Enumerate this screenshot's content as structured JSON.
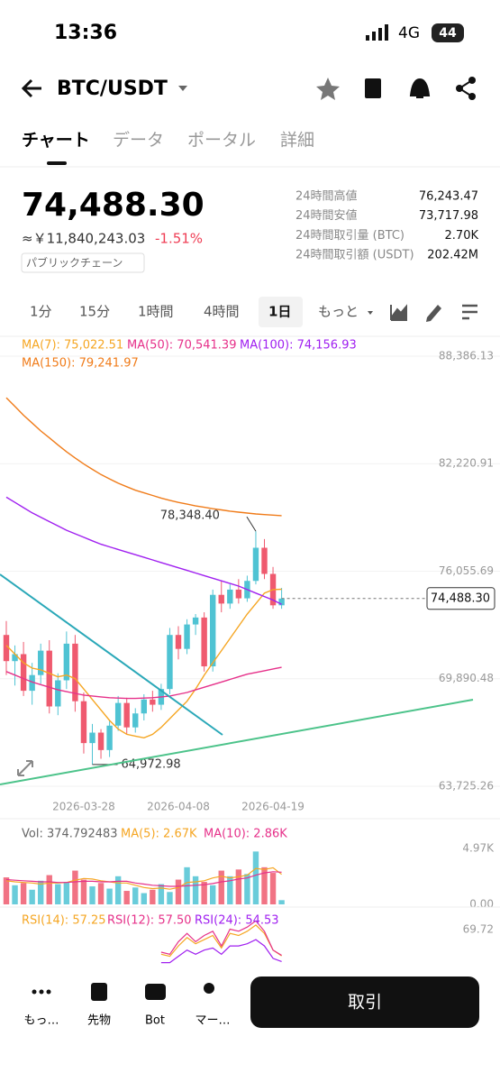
{
  "status_bar": {
    "time": "13:36",
    "network": "4G",
    "battery": "44"
  },
  "header": {
    "pair": "BTC/USDT"
  },
  "tabs": [
    "チャート",
    "データ",
    "ポータル",
    "詳細"
  ],
  "ticker": {
    "price": "74,488.30",
    "fiat": "≈￥11,840,243.03",
    "change": "-1.51%",
    "tag": "パブリックチェーン",
    "stats": [
      [
        "24時間高値",
        "76,243.47"
      ],
      [
        "24時間安値",
        "73,717.98"
      ],
      [
        "24時間取引量 (BTC)",
        "2.70K"
      ],
      [
        "24時間取引額 (USDT)",
        "202.42M"
      ]
    ]
  },
  "intervals": [
    "1分",
    "15分",
    "1時間",
    "4時間",
    "1日",
    "もっと"
  ],
  "chart_data": {
    "type": "candlestick",
    "categories": [
      null,
      null,
      null,
      null,
      null,
      null,
      null,
      null,
      null,
      "2026-03-28",
      null,
      null,
      null,
      null,
      null,
      null,
      null,
      null,
      null,
      null,
      "2026-04-08",
      null,
      null,
      null,
      null,
      null,
      null,
      null,
      null,
      null,
      null,
      "2026-04-19",
      null
    ],
    "open": [
      72400,
      70900,
      71300,
      69200,
      70100,
      71500,
      68300,
      69800,
      71900,
      68600,
      66200,
      66800,
      65800,
      67200,
      68500,
      67100,
      67900,
      68700,
      68400,
      69300,
      72400,
      71600,
      73000,
      73400,
      70600,
      74700,
      74200,
      75000,
      74500,
      75500,
      77400,
      75900,
      74100
    ],
    "high": [
      73200,
      71800,
      72000,
      70800,
      71900,
      72100,
      70200,
      72600,
      72400,
      69100,
      67300,
      67000,
      67500,
      68900,
      68800,
      68200,
      69000,
      69200,
      69600,
      72800,
      72900,
      73300,
      73600,
      73700,
      75000,
      75500,
      75300,
      75600,
      75800,
      78348.4,
      77900,
      76300,
      75100
    ],
    "low": [
      70100,
      69500,
      68900,
      68400,
      69600,
      67900,
      67800,
      69300,
      68000,
      65600,
      64972.98,
      65300,
      65400,
      66900,
      66700,
      66800,
      67500,
      68000,
      68100,
      69000,
      71000,
      71300,
      72400,
      70300,
      70300,
      73700,
      73900,
      74200,
      74300,
      75300,
      75600,
      73900,
      73900
    ],
    "close": [
      70900,
      71300,
      69200,
      70100,
      71500,
      68300,
      69800,
      71900,
      68600,
      66200,
      66800,
      65800,
      67200,
      68500,
      67100,
      67900,
      68700,
      68400,
      69300,
      72400,
      71600,
      73000,
      73400,
      70600,
      74700,
      74200,
      75000,
      74500,
      75500,
      77400,
      75900,
      74100,
      74488.3
    ],
    "high_label": "78,348.40",
    "low_label": "64,972.98",
    "up_color": "#4fc3d3",
    "down_color": "#ef5a6f",
    "ylim": [
      63311,
      89420
    ],
    "yticks": [
      {
        "value": 63725.26,
        "label": "63,725.26"
      },
      {
        "value": 69890.48,
        "label": "69,890.48"
      },
      {
        "value": 76055.69,
        "label": "76,055.69"
      },
      {
        "value": 82220.91,
        "label": "82,220.91"
      },
      {
        "value": 88386.13,
        "label": "88,386.13"
      }
    ],
    "grid": true,
    "series": [
      {
        "name": "MA(7): 75,022.51",
        "color": "#f5a623",
        "values": [
          71800,
          71300,
          70800,
          70500,
          70400,
          70200,
          70000,
          70100,
          69900,
          69300,
          68700,
          68100,
          67500,
          67000,
          66700,
          66600,
          66500,
          66700,
          67100,
          67600,
          68100,
          68600,
          69300,
          70100,
          70800,
          71500,
          72200,
          72900,
          73600,
          74200,
          74800,
          75000,
          75022.51
        ]
      },
      {
        "name": "MA(50): 70,541.39",
        "color": "#e6318a",
        "values": [
          70300,
          70100,
          69900,
          69700,
          69550,
          69400,
          69250,
          69150,
          69050,
          68950,
          68900,
          68850,
          68800,
          68780,
          68760,
          68760,
          68780,
          68800,
          68850,
          68900,
          69000,
          69100,
          69250,
          69400,
          69550,
          69700,
          69850,
          70000,
          70150,
          70250,
          70350,
          70450,
          70541.39
        ]
      },
      {
        "name": "MA(100): 74,156.93",
        "color": "#a020f0",
        "values": [
          80300,
          80000,
          79700,
          79400,
          79150,
          78900,
          78650,
          78400,
          78200,
          78000,
          77800,
          77600,
          77450,
          77300,
          77150,
          77000,
          76850,
          76700,
          76550,
          76400,
          76250,
          76100,
          75950,
          75800,
          75650,
          75500,
          75350,
          75200,
          75000,
          74800,
          74600,
          74400,
          74156.93
        ]
      },
      {
        "name": "MA(150): 79,241.97",
        "color": "#f07c1a",
        "values": [
          86000,
          85500,
          85000,
          84550,
          84100,
          83700,
          83300,
          82900,
          82550,
          82200,
          81900,
          81600,
          81350,
          81100,
          80900,
          80700,
          80550,
          80400,
          80250,
          80120,
          80000,
          79900,
          79800,
          79720,
          79640,
          79570,
          79500,
          79440,
          79390,
          79340,
          79300,
          79270,
          79241.97
        ]
      }
    ],
    "volume": {
      "name": "Vol: 374.792483",
      "values": [
        2400,
        1700,
        1900,
        1300,
        2100,
        2600,
        1800,
        2000,
        3000,
        2200,
        1600,
        1900,
        1400,
        2500,
        1200,
        1500,
        1000,
        1300,
        1800,
        1100,
        2200,
        3300,
        2500,
        2000,
        1700,
        3000,
        2500,
        3100,
        2700,
        4700,
        3300,
        2800,
        374.792483
      ],
      "ylim": [
        0,
        5690
      ],
      "yticks": [
        {
          "value": 4970,
          "label": "4.97K"
        },
        {
          "value": 0,
          "label": "0.00"
        }
      ],
      "series": [
        {
          "name": "MA(5): 2.67K",
          "color": "#f5a623",
          "values": [
            2100,
            2000,
            1950,
            1900,
            1800,
            1900,
            1900,
            1950,
            2150,
            2300,
            2250,
            2100,
            2000,
            1900,
            1900,
            1700,
            1500,
            1400,
            1450,
            1350,
            1500,
            1950,
            2000,
            2100,
            2350,
            2500,
            2350,
            2450,
            2600,
            3200,
            3100,
            3250,
            2670
          ]
        },
        {
          "name": "MA(10): 2.86K",
          "color": "#e6318a",
          "values": [
            2200,
            2150,
            2100,
            2050,
            2000,
            2000,
            1950,
            1950,
            2000,
            2050,
            2050,
            2000,
            2000,
            2050,
            2050,
            1900,
            1800,
            1700,
            1650,
            1600,
            1600,
            1650,
            1700,
            1750,
            1850,
            2000,
            2100,
            2250,
            2350,
            2600,
            2800,
            2900,
            2860
          ]
        }
      ]
    },
    "rsi": {
      "ylim": [
        40,
        78
      ],
      "yticks": [
        69.72
      ],
      "series": [
        {
          "name": "RSI(14): 57.25",
          "color": "#f5a623",
          "values": [
            null,
            null,
            null,
            null,
            null,
            null,
            null,
            null,
            null,
            null,
            null,
            null,
            null,
            null,
            null,
            null,
            null,
            null,
            58,
            57,
            62,
            66,
            63,
            65,
            67,
            61,
            68,
            67,
            69,
            72,
            68,
            60,
            57.25
          ]
        },
        {
          "name": "RSI(12): 57.50",
          "color": "#e6318a",
          "values": [
            null,
            null,
            null,
            null,
            null,
            null,
            null,
            null,
            null,
            null,
            null,
            null,
            null,
            null,
            null,
            null,
            null,
            null,
            59,
            58,
            64,
            68,
            64,
            67,
            69,
            62,
            70,
            69,
            71,
            74,
            69,
            60,
            57.5
          ]
        },
        {
          "name": "RSI(24): 54.53",
          "color": "#a020f0",
          "values": [
            null,
            null,
            null,
            null,
            null,
            null,
            null,
            null,
            null,
            null,
            null,
            null,
            null,
            null,
            null,
            null,
            null,
            null,
            54,
            54,
            57,
            60,
            58,
            60,
            61,
            58,
            62,
            62,
            63,
            65,
            62,
            56,
            54.53
          ]
        }
      ]
    }
  },
  "bottom_nav": [
    "もっ…",
    "先物",
    "Bot",
    "マー…"
  ],
  "trade_button": "取引"
}
